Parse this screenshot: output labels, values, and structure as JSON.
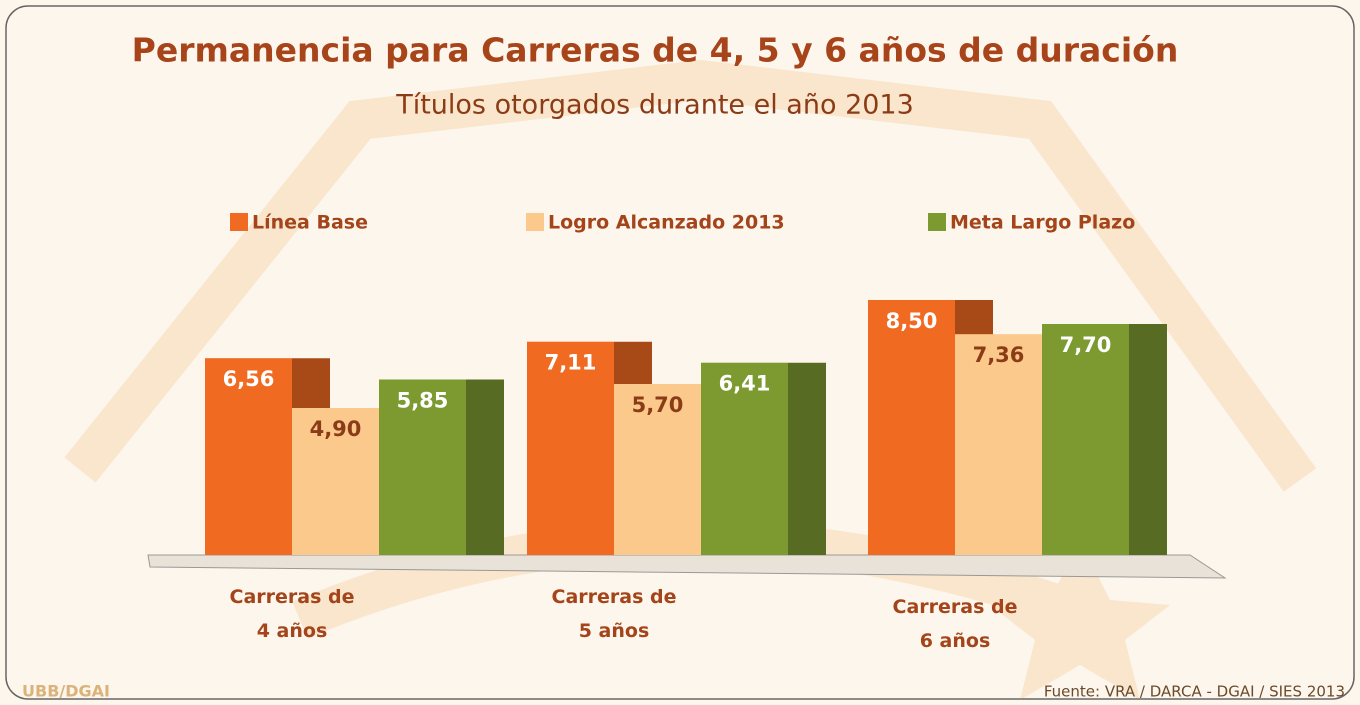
{
  "chart_data": {
    "type": "bar3d",
    "title": "Permanencia para Carreras de 4, 5 y 6 años de duración",
    "subtitle": "Títulos otorgados durante el año 2013",
    "categories": [
      "Carreras de 4 años",
      "Carreras de 5 años",
      "Carreras de 6 años"
    ],
    "series": [
      {
        "name": "Línea Base",
        "color": "#f06a22",
        "values": [
          6.56,
          7.11,
          8.5
        ],
        "value_labels": [
          "6,56",
          "7,11",
          "8,50"
        ]
      },
      {
        "name": "Logro Alcanzado 2013",
        "color": "#fbc98c",
        "values": [
          4.9,
          5.7,
          7.36
        ],
        "value_labels": [
          "4,90",
          "5,70",
          "7,36"
        ]
      },
      {
        "name": "Meta Largo Plazo",
        "color": "#7c9a30",
        "values": [
          5.85,
          6.41,
          7.7
        ],
        "value_labels": [
          "5,85",
          "6,41",
          "7,70"
        ]
      }
    ],
    "legend": "top",
    "source": "Fuente: VRA / DARCA - DGAI / SIES 2013",
    "logo": "UBB/DGAI"
  }
}
